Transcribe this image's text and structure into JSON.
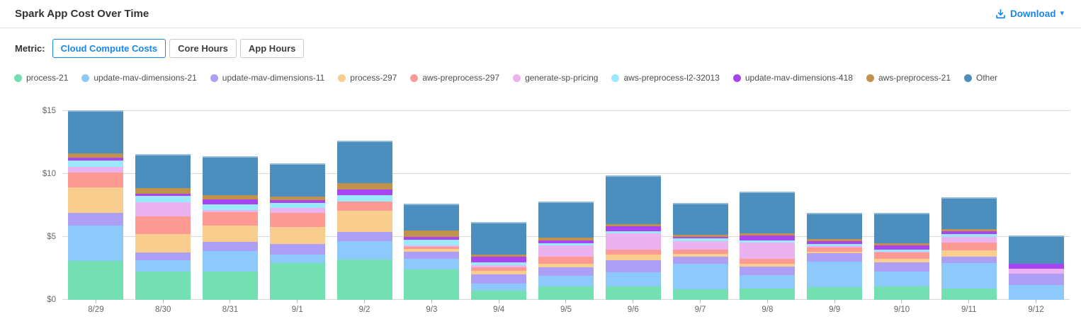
{
  "header": {
    "title": "Spark App Cost Over Time",
    "download_label": "Download",
    "caret_glyph": "▾"
  },
  "metric": {
    "label": "Metric:",
    "options": [
      {
        "label": "Cloud Compute Costs",
        "selected": true
      },
      {
        "label": "Core Hours",
        "selected": false
      },
      {
        "label": "App Hours",
        "selected": false
      }
    ]
  },
  "colors": {
    "accent_blue": "#1a86ec",
    "grid": "#d8d8d8",
    "axis_text": "#666666",
    "title_text": "#333333",
    "legend_text": "#4d4d4d"
  },
  "chart_data": {
    "type": "bar",
    "stacked": true,
    "title": "Spark App Cost Over Time",
    "xlabel": "",
    "ylabel": "",
    "ylim": [
      0,
      15
    ],
    "grid": true,
    "legend_position": "top",
    "yticks": [
      {
        "value": 0,
        "label": "$0"
      },
      {
        "value": 5,
        "label": "$5"
      },
      {
        "value": 10,
        "label": "$10"
      },
      {
        "value": 15,
        "label": "$15"
      }
    ],
    "categories": [
      "8/29",
      "8/30",
      "8/31",
      "9/1",
      "9/2",
      "9/3",
      "9/4",
      "9/5",
      "9/6",
      "9/7",
      "9/8",
      "9/9",
      "9/10",
      "9/11",
      "9/12"
    ],
    "series": [
      {
        "name": "process-21",
        "color": "#74dfb2",
        "values": [
          3.1,
          2.22,
          2.26,
          2.93,
          3.2,
          2.41,
          0.72,
          1.05,
          1.09,
          0.85,
          0.9,
          1.03,
          1.05,
          0.9,
          0.0
        ]
      },
      {
        "name": "update-mav-dimensions-21",
        "color": "#8ec9fb",
        "values": [
          2.8,
          0.9,
          1.65,
          0.7,
          1.46,
          0.84,
          0.56,
          0.83,
          1.13,
          2.03,
          1.09,
          2.03,
          1.17,
          2.03,
          1.18
        ]
      },
      {
        "name": "update-mav-dimensions-11",
        "color": "#ac9ff5",
        "values": [
          1.0,
          0.6,
          0.75,
          0.84,
          0.75,
          0.57,
          0.71,
          0.68,
          0.98,
          0.56,
          0.7,
          0.7,
          0.71,
          0.51,
          0.91
        ]
      },
      {
        "name": "process-297",
        "color": "#f8cd8d",
        "values": [
          2.0,
          1.47,
          1.28,
          1.36,
          1.66,
          0.22,
          0.3,
          0.26,
          0.43,
          0.24,
          0.24,
          0.11,
          0.27,
          0.52,
          0.0
        ]
      },
      {
        "name": "aws-preprocess-297",
        "color": "#fd9a94",
        "values": [
          1.2,
          1.39,
          1.07,
          1.14,
          0.75,
          0.19,
          0.3,
          0.56,
          0.37,
          0.36,
          0.42,
          0.36,
          0.48,
          0.61,
          0.0
        ]
      },
      {
        "name": "generate-sp-pricing",
        "color": "#eab3f0",
        "values": [
          0.45,
          1.13,
          0.19,
          0.38,
          0.0,
          0.11,
          0.15,
          0.91,
          1.32,
          0.66,
          1.31,
          0.09,
          0.07,
          0.47,
          0.37
        ]
      },
      {
        "name": "aws-preprocess-l2-32013",
        "color": "#9be9fd",
        "values": [
          0.5,
          0.48,
          0.43,
          0.42,
          0.51,
          0.47,
          0.24,
          0.18,
          0.19,
          0.24,
          0.15,
          0.19,
          0.19,
          0.22,
          0.0
        ]
      },
      {
        "name": "update-mav-dimensions-418",
        "color": "#a845f0",
        "values": [
          0.23,
          0.19,
          0.42,
          0.2,
          0.47,
          0.23,
          0.45,
          0.23,
          0.37,
          0.14,
          0.42,
          0.24,
          0.34,
          0.21,
          0.38
        ]
      },
      {
        "name": "aws-preprocess-21",
        "color": "#c0924c",
        "values": [
          0.32,
          0.45,
          0.31,
          0.26,
          0.52,
          0.5,
          0.17,
          0.24,
          0.19,
          0.18,
          0.18,
          0.19,
          0.18,
          0.19,
          0.0
        ]
      },
      {
        "name": "Other",
        "color": "#4c8ebe",
        "values": [
          3.4,
          2.67,
          3.11,
          2.64,
          3.38,
          2.13,
          2.57,
          2.86,
          3.89,
          2.5,
          3.33,
          2.07,
          2.42,
          2.52,
          2.24
        ]
      }
    ]
  }
}
